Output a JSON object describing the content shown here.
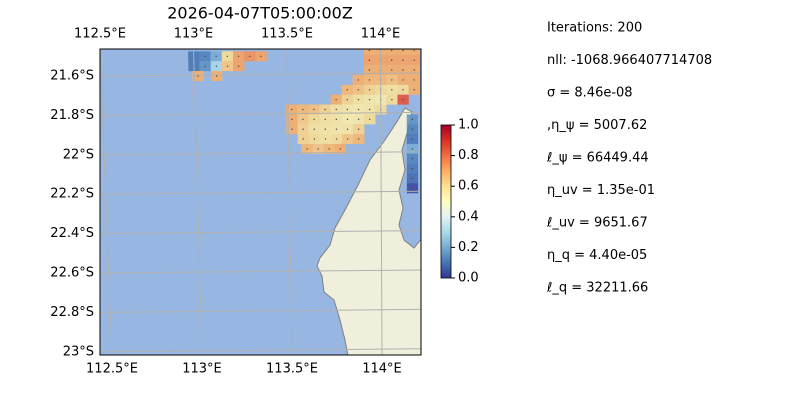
{
  "title": "2026-04-07T05:00:00Z",
  "map": {
    "lon_ticks": [
      {
        "value": 112.5,
        "label": "112.5°E"
      },
      {
        "value": 113,
        "label": "113°E"
      },
      {
        "value": 113.5,
        "label": "113.5°E"
      },
      {
        "value": 114,
        "label": "114°E"
      }
    ],
    "lat_ticks": [
      {
        "value": 21.6,
        "label": "21.6°S"
      },
      {
        "value": 21.8,
        "label": "21.8°S"
      },
      {
        "value": 22,
        "label": "22°S"
      },
      {
        "value": 22.2,
        "label": "22.2°S"
      },
      {
        "value": 22.4,
        "label": "22.4°S"
      },
      {
        "value": 22.6,
        "label": "22.6°S"
      },
      {
        "value": 22.8,
        "label": "22.8°S"
      },
      {
        "value": 23,
        "label": "23°S"
      }
    ],
    "cells": [
      [
        113.0,
        21.5,
        0.1
      ],
      [
        113.06,
        21.5,
        0.12
      ],
      [
        113.12,
        21.5,
        0.2
      ],
      [
        113.18,
        21.5,
        0.6
      ],
      [
        113.24,
        21.5,
        0.72
      ],
      [
        113.3,
        21.5,
        0.75
      ],
      [
        113.36,
        21.5,
        0.72
      ],
      [
        113.0,
        21.55,
        0.1
      ],
      [
        113.06,
        21.55,
        0.15
      ],
      [
        113.12,
        21.55,
        0.3
      ],
      [
        113.18,
        21.55,
        0.65
      ],
      [
        113.24,
        21.55,
        0.72
      ],
      [
        113.02,
        21.6,
        0.7
      ],
      [
        113.12,
        21.6,
        0.7
      ],
      [
        113.94,
        21.47,
        0.7
      ],
      [
        114.0,
        21.47,
        0.7
      ],
      [
        114.06,
        21.47,
        0.7
      ],
      [
        114.12,
        21.47,
        0.7
      ],
      [
        114.18,
        21.47,
        0.7
      ],
      [
        113.94,
        21.52,
        0.72
      ],
      [
        114.0,
        21.52,
        0.72
      ],
      [
        114.06,
        21.52,
        0.72
      ],
      [
        114.12,
        21.52,
        0.72
      ],
      [
        114.18,
        21.52,
        0.72
      ],
      [
        113.94,
        21.57,
        0.7
      ],
      [
        114.0,
        21.57,
        0.7
      ],
      [
        114.06,
        21.57,
        0.7
      ],
      [
        114.12,
        21.57,
        0.7
      ],
      [
        114.18,
        21.57,
        0.7
      ],
      [
        113.88,
        21.62,
        0.7
      ],
      [
        113.94,
        21.62,
        0.68
      ],
      [
        114.0,
        21.62,
        0.68
      ],
      [
        114.06,
        21.62,
        0.66
      ],
      [
        114.12,
        21.62,
        0.7
      ],
      [
        114.18,
        21.62,
        0.7
      ],
      [
        113.82,
        21.67,
        0.68
      ],
      [
        113.88,
        21.67,
        0.66
      ],
      [
        113.94,
        21.67,
        0.62
      ],
      [
        114.0,
        21.67,
        0.6
      ],
      [
        114.06,
        21.67,
        0.58
      ],
      [
        114.12,
        21.67,
        0.6
      ],
      [
        114.18,
        21.67,
        0.7
      ],
      [
        113.76,
        21.72,
        0.7
      ],
      [
        113.82,
        21.72,
        0.62
      ],
      [
        113.88,
        21.72,
        0.58
      ],
      [
        113.94,
        21.72,
        0.56
      ],
      [
        114.0,
        21.72,
        0.55
      ],
      [
        114.06,
        21.72,
        0.6
      ],
      [
        114.12,
        21.72,
        0.85
      ],
      [
        113.52,
        21.77,
        0.7
      ],
      [
        113.58,
        21.77,
        0.68
      ],
      [
        113.64,
        21.77,
        0.66
      ],
      [
        113.7,
        21.77,
        0.62
      ],
      [
        113.76,
        21.77,
        0.58
      ],
      [
        113.82,
        21.77,
        0.56
      ],
      [
        113.88,
        21.77,
        0.55
      ],
      [
        113.94,
        21.77,
        0.56
      ],
      [
        114.0,
        21.77,
        0.6
      ],
      [
        113.52,
        21.82,
        0.7
      ],
      [
        113.58,
        21.82,
        0.64
      ],
      [
        113.64,
        21.82,
        0.6
      ],
      [
        113.7,
        21.82,
        0.58
      ],
      [
        113.76,
        21.82,
        0.57
      ],
      [
        113.82,
        21.82,
        0.55
      ],
      [
        113.88,
        21.82,
        0.56
      ],
      [
        113.94,
        21.82,
        0.6
      ],
      [
        113.52,
        21.87,
        0.7
      ],
      [
        113.58,
        21.87,
        0.62
      ],
      [
        113.64,
        21.87,
        0.58
      ],
      [
        113.7,
        21.87,
        0.57
      ],
      [
        113.76,
        21.87,
        0.56
      ],
      [
        113.82,
        21.87,
        0.57
      ],
      [
        113.88,
        21.87,
        0.62
      ],
      [
        113.58,
        21.92,
        0.62
      ],
      [
        113.64,
        21.92,
        0.6
      ],
      [
        113.7,
        21.92,
        0.58
      ],
      [
        113.76,
        21.92,
        0.6
      ],
      [
        113.82,
        21.92,
        0.65
      ],
      [
        113.88,
        21.92,
        0.68
      ],
      [
        113.6,
        21.97,
        0.68
      ],
      [
        113.66,
        21.97,
        0.65
      ],
      [
        113.72,
        21.97,
        0.68
      ],
      [
        113.78,
        21.97,
        0.7
      ],
      [
        114.17,
        21.82,
        0.15
      ],
      [
        114.17,
        21.87,
        0.12
      ],
      [
        114.17,
        21.92,
        0.1
      ],
      [
        114.17,
        21.97,
        0.2
      ],
      [
        114.17,
        22.02,
        0.12
      ],
      [
        114.17,
        22.07,
        0.1
      ],
      [
        114.17,
        22.12,
        0.08
      ],
      [
        114.17,
        22.17,
        0.02
      ]
    ]
  },
  "colorbar": {
    "lim": [
      0,
      1
    ],
    "ticks": [
      {
        "value": 0,
        "label": "0.0"
      },
      0.2,
      0.4,
      0.6,
      0.8,
      {
        "value": 1,
        "label": "1.0"
      }
    ]
  },
  "info": [
    "Iterations: 200",
    "nll: -1068.966407714708",
    "σ = 8.46e-08",
    ",η_ψ = 5007.62",
    "ℓ_ψ = 66449.44",
    "η_uv = 1.35e-01",
    "ℓ_uv = 9651.67",
    "η_q = 4.40e-05",
    "ℓ_q = 32211.66"
  ]
}
